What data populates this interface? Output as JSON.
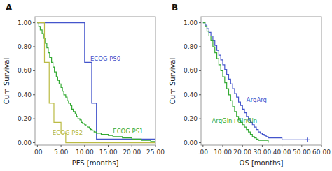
{
  "chart_data": [
    {
      "type": "line",
      "title": "A",
      "xlabel": "PFS [months]",
      "ylabel": "Cum Survival",
      "xlim": [
        -0.5,
        25
      ],
      "ylim": [
        -0.02,
        1.05
      ],
      "xticks": [
        {
          "value": 0,
          "label": ".00"
        },
        {
          "value": 5,
          "label": "5.00"
        },
        {
          "value": 10,
          "label": "10.00"
        },
        {
          "value": 15,
          "label": "15.00"
        },
        {
          "value": 20,
          "label": "20.00"
        },
        {
          "value": 25,
          "label": "25.00"
        }
      ],
      "yticks": [
        {
          "value": 0.0,
          "label": "0.00"
        },
        {
          "value": 0.2,
          "label": "0.20"
        },
        {
          "value": 0.4,
          "label": "0.40"
        },
        {
          "value": 0.6,
          "label": "0.60"
        },
        {
          "value": 0.8,
          "label": "0.80"
        },
        {
          "value": 1.0,
          "label": "1.00"
        }
      ],
      "grid": false,
      "series": [
        {
          "color": "#4455cc",
          "line_style": "steps",
          "x": [
            0,
            10,
            10,
            11.5,
            11.5,
            12.5,
            12.5,
            25
          ],
          "values": [
            1.0,
            1.0,
            0.67,
            0.67,
            0.33,
            0.33,
            0.03,
            0.03
          ]
        },
        {
          "color": "#33aa33",
          "line_style": "steps",
          "x": [
            0,
            0.3,
            0.6,
            1.0,
            1.3,
            1.6,
            2.0,
            2.3,
            2.6,
            3.0,
            3.3,
            3.6,
            4.0,
            4.3,
            4.6,
            5.0,
            5.3,
            5.6,
            6.0,
            6.3,
            6.6,
            7.0,
            7.3,
            7.6,
            8.0,
            8.3,
            8.6,
            9.0,
            9.3,
            9.6,
            10.0,
            10.3,
            10.6,
            11.0,
            11.3,
            11.6,
            12.0,
            12.5,
            13.0,
            13.5,
            14.0,
            15.0,
            16.0,
            17.0,
            18.0,
            19.0,
            20.0,
            21.0,
            22.0,
            23.0,
            24.0,
            25.0
          ],
          "values": [
            1.0,
            0.97,
            0.94,
            0.91,
            0.87,
            0.83,
            0.79,
            0.75,
            0.71,
            0.67,
            0.63,
            0.59,
            0.55,
            0.52,
            0.49,
            0.46,
            0.43,
            0.4,
            0.38,
            0.35,
            0.33,
            0.31,
            0.28,
            0.26,
            0.24,
            0.22,
            0.2,
            0.19,
            0.17,
            0.16,
            0.15,
            0.14,
            0.13,
            0.12,
            0.11,
            0.1,
            0.09,
            0.08,
            0.08,
            0.07,
            0.07,
            0.06,
            0.05,
            0.05,
            0.04,
            0.04,
            0.03,
            0.03,
            0.02,
            0.02,
            0.01,
            0.01
          ]
        },
        {
          "color": "#bbbb44",
          "line_style": "steps",
          "x": [
            0,
            1.5,
            1.5,
            2.5,
            2.5,
            3.5,
            3.5,
            5.0,
            5.0,
            6.0,
            6.0,
            25
          ],
          "values": [
            1.0,
            1.0,
            0.67,
            0.67,
            0.33,
            0.33,
            0.17,
            0.17,
            0.08,
            0.08,
            0.0,
            0.0
          ]
        }
      ],
      "annotations": [
        {
          "text": "ECOG PS0",
          "x": 11.2,
          "y": 0.7,
          "color": "#4455cc"
        },
        {
          "text": "ECOG PS1",
          "x": 16.0,
          "y": 0.095,
          "color": "#33aa33"
        },
        {
          "text": "ECOG PS2",
          "x": 3.2,
          "y": 0.085,
          "color": "#bbbb44"
        }
      ]
    },
    {
      "type": "line",
      "title": "B",
      "xlabel": "OS [months]",
      "ylabel": "Cum Survival",
      "xlim": [
        -1,
        60
      ],
      "ylim": [
        -0.02,
        1.05
      ],
      "xticks": [
        {
          "value": 0,
          "label": ".00"
        },
        {
          "value": 10,
          "label": "10.00"
        },
        {
          "value": 20,
          "label": "20.00"
        },
        {
          "value": 30,
          "label": "30.00"
        },
        {
          "value": 40,
          "label": "40.00"
        },
        {
          "value": 50,
          "label": "50.00"
        },
        {
          "value": 60,
          "label": "60.00"
        }
      ],
      "yticks": [
        {
          "value": 0.0,
          "label": "0.00"
        },
        {
          "value": 0.2,
          "label": "0.20"
        },
        {
          "value": 0.4,
          "label": "0.40"
        },
        {
          "value": 0.6,
          "label": "0.60"
        },
        {
          "value": 0.8,
          "label": "0.80"
        },
        {
          "value": 1.0,
          "label": "1.00"
        }
      ],
      "grid": false,
      "series": [
        {
          "color": "#4455cc",
          "line_style": "steps",
          "x": [
            0,
            1,
            2,
            3,
            4,
            5,
            6,
            7,
            8,
            9,
            10,
            11,
            12,
            13,
            14,
            15,
            16,
            17,
            18,
            19,
            20,
            21,
            22,
            23,
            24,
            25,
            26,
            27,
            28,
            29,
            30,
            31,
            32,
            33,
            34,
            40,
            53
          ],
          "values": [
            1.0,
            0.98,
            0.95,
            0.92,
            0.89,
            0.85,
            0.81,
            0.77,
            0.73,
            0.69,
            0.65,
            0.61,
            0.57,
            0.53,
            0.49,
            0.45,
            0.41,
            0.38,
            0.34,
            0.31,
            0.28,
            0.25,
            0.22,
            0.19,
            0.17,
            0.15,
            0.13,
            0.11,
            0.09,
            0.08,
            0.07,
            0.06,
            0.05,
            0.04,
            0.04,
            0.025,
            0.025
          ],
          "censor_x": [
            53
          ],
          "censor_y": [
            0.025
          ]
        },
        {
          "color": "#33aa33",
          "line_style": "steps",
          "x": [
            0,
            1,
            2,
            3,
            4,
            5,
            6,
            7,
            8,
            9,
            10,
            11,
            12,
            13,
            14,
            15,
            16,
            17,
            18,
            19,
            20,
            21,
            22,
            23,
            24,
            25,
            26,
            27,
            28,
            33
          ],
          "values": [
            1.0,
            0.97,
            0.93,
            0.89,
            0.85,
            0.8,
            0.75,
            0.7,
            0.65,
            0.6,
            0.55,
            0.5,
            0.45,
            0.4,
            0.35,
            0.3,
            0.26,
            0.22,
            0.19,
            0.17,
            0.15,
            0.13,
            0.11,
            0.09,
            0.07,
            0.05,
            0.04,
            0.03,
            0.02,
            0.0
          ]
        }
      ],
      "annotations": [
        {
          "text": "ArgArg",
          "x": 22.0,
          "y": 0.36,
          "color": "#4455cc"
        },
        {
          "text": "ArgGln+GlnGln",
          "x": 4.5,
          "y": 0.185,
          "color": "#33aa33"
        }
      ]
    }
  ]
}
